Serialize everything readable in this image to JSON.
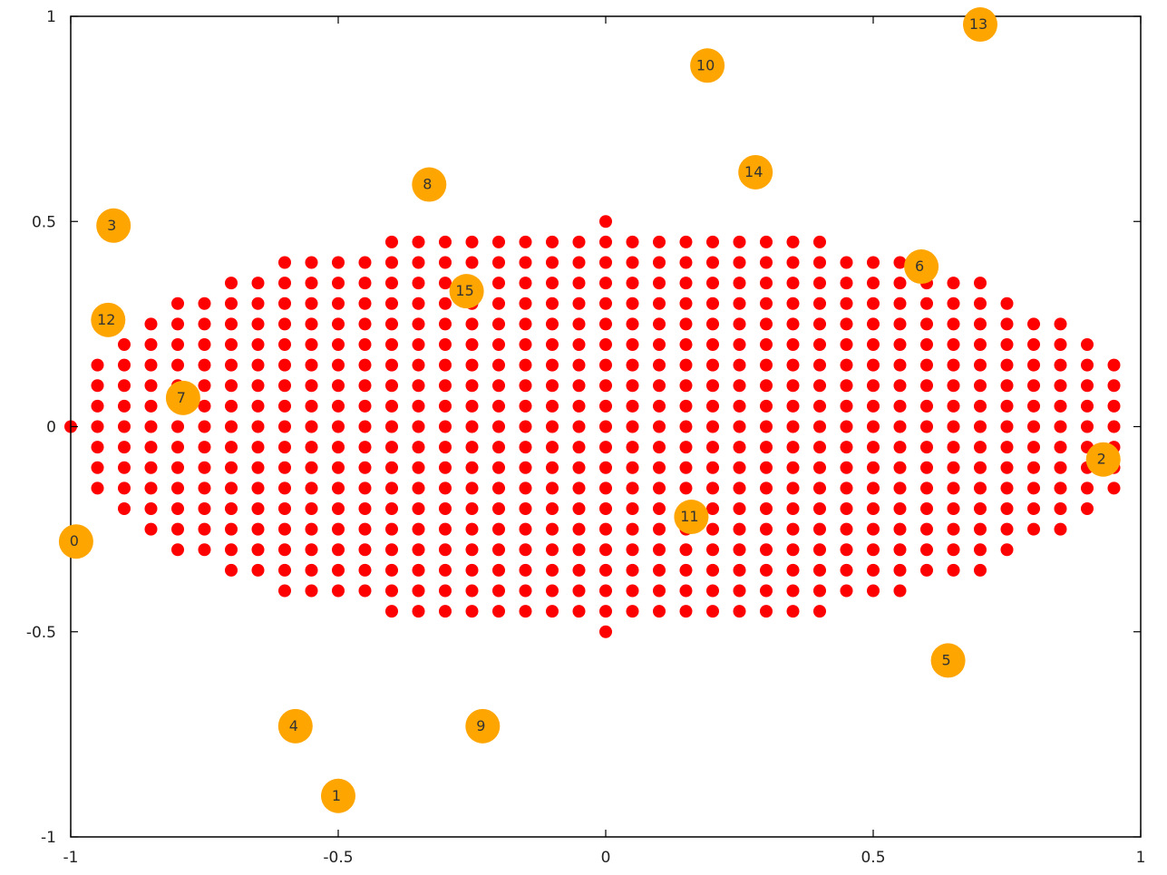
{
  "chart_data": {
    "type": "scatter",
    "title": "",
    "xlabel": "",
    "ylabel": "",
    "xlim": [
      -1,
      1
    ],
    "ylim": [
      -1,
      1
    ],
    "grid": false,
    "x_ticks": [
      {
        "value": -1,
        "label": "-1"
      },
      {
        "value": -0.5,
        "label": "-0.5"
      },
      {
        "value": 0,
        "label": "0"
      },
      {
        "value": 0.5,
        "label": "0.5"
      },
      {
        "value": 1,
        "label": "1"
      }
    ],
    "y_ticks": [
      {
        "value": -1,
        "label": "-1"
      },
      {
        "value": -0.5,
        "label": "-0.5"
      },
      {
        "value": 0,
        "label": "0"
      },
      {
        "value": 0.5,
        "label": "0.5"
      },
      {
        "value": 1,
        "label": "1"
      }
    ],
    "series": [
      {
        "color": "#ff0000",
        "marker": "small-dot",
        "grid_step": 0.05,
        "rows": [
          {
            "y": 0.45,
            "x_min": -0.4,
            "x_max": 0.4
          },
          {
            "y": 0.4,
            "x_min": -0.6,
            "x_max": 0.55
          },
          {
            "y": 0.35,
            "x_min": -0.7,
            "x_max": 0.7
          },
          {
            "y": 0.3,
            "x_min": -0.8,
            "x_max": 0.75
          },
          {
            "y": 0.25,
            "x_min": -0.85,
            "x_max": 0.85
          },
          {
            "y": 0.2,
            "x_min": -0.9,
            "x_max": 0.9
          },
          {
            "y": 0.15,
            "x_min": -0.95,
            "x_max": 0.95
          },
          {
            "y": 0.1,
            "x_min": -0.95,
            "x_max": 0.95
          },
          {
            "y": 0.05,
            "x_min": -0.95,
            "x_max": 0.95
          },
          {
            "y": 0,
            "x_min": -0.95,
            "x_max": 0.95
          },
          {
            "y": -0.05,
            "x_min": -0.95,
            "x_max": 0.95
          },
          {
            "y": -0.1,
            "x_min": -0.95,
            "x_max": 0.95
          },
          {
            "y": -0.15,
            "x_min": -0.95,
            "x_max": 0.95
          },
          {
            "y": -0.2,
            "x_min": -0.9,
            "x_max": 0.9
          },
          {
            "y": -0.25,
            "x_min": -0.85,
            "x_max": 0.85
          },
          {
            "y": -0.3,
            "x_min": -0.8,
            "x_max": 0.75
          },
          {
            "y": -0.35,
            "x_min": -0.7,
            "x_max": 0.7
          },
          {
            "y": -0.4,
            "x_min": -0.6,
            "x_max": 0.55
          },
          {
            "y": -0.45,
            "x_min": -0.4,
            "x_max": 0.4
          }
        ],
        "extra_points": [
          {
            "x": -1,
            "y": 0
          },
          {
            "x": 0,
            "y": 0.5
          },
          {
            "x": 0,
            "y": -0.5
          }
        ]
      },
      {
        "color": "#ffa500",
        "marker": "labeled-circle",
        "points": [
          {
            "label": "0",
            "x": -0.99,
            "y": -0.28
          },
          {
            "label": "1",
            "x": -0.5,
            "y": -0.9
          },
          {
            "label": "2",
            "x": 0.93,
            "y": -0.08
          },
          {
            "label": "3",
            "x": -0.92,
            "y": 0.49
          },
          {
            "label": "4",
            "x": -0.58,
            "y": -0.73
          },
          {
            "label": "5",
            "x": 0.64,
            "y": -0.57
          },
          {
            "label": "6",
            "x": 0.59,
            "y": 0.39
          },
          {
            "label": "7",
            "x": -0.79,
            "y": 0.07
          },
          {
            "label": "8",
            "x": -0.33,
            "y": 0.59
          },
          {
            "label": "9",
            "x": -0.23,
            "y": -0.73
          },
          {
            "label": "10",
            "x": 0.19,
            "y": 0.88
          },
          {
            "label": "11",
            "x": 0.16,
            "y": -0.22
          },
          {
            "label": "12",
            "x": -0.93,
            "y": 0.26
          },
          {
            "label": "13",
            "x": 0.7,
            "y": 0.98
          },
          {
            "label": "14",
            "x": 0.28,
            "y": 0.62
          },
          {
            "label": "15",
            "x": -0.26,
            "y": 0.33
          }
        ]
      }
    ]
  }
}
